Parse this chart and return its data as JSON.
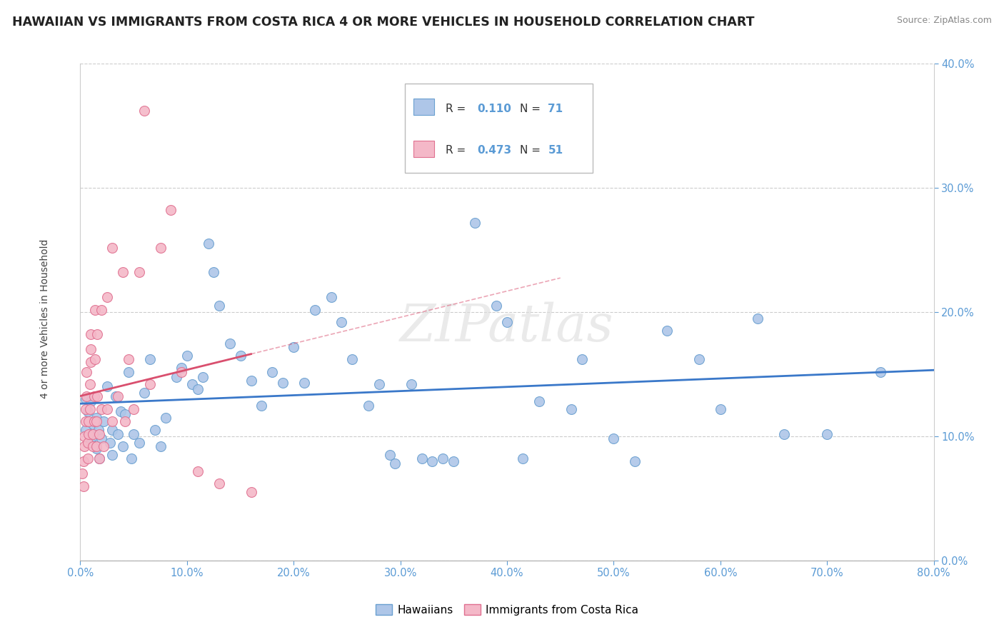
{
  "title": "HAWAIIAN VS IMMIGRANTS FROM COSTA RICA 4 OR MORE VEHICLES IN HOUSEHOLD CORRELATION CHART",
  "source_text": "Source: ZipAtlas.com",
  "ylabel": "4 or more Vehicles in Household",
  "watermark_text": "ZIPatlas",
  "hawaiian_color": "#aec6e8",
  "costarica_color": "#f4b8c8",
  "hawaiian_edge": "#6aa0d0",
  "costarica_edge": "#e07090",
  "hawaiian_trendline_color": "#3a78c9",
  "costarica_trendline_color": "#d94f6e",
  "tick_color": "#5b9bd5",
  "legend_r_color": "#5b9bd5",
  "legend_n_color": "#5b9bd5",
  "legend_text_color": "#333333",
  "xmin": 0.0,
  "xmax": 0.8,
  "ymin": 0.0,
  "ymax": 0.4,
  "hawaiian_scatter": [
    [
      0.005,
      0.13
    ],
    [
      0.005,
      0.105
    ],
    [
      0.007,
      0.12
    ],
    [
      0.01,
      0.128
    ],
    [
      0.01,
      0.095
    ],
    [
      0.012,
      0.11
    ],
    [
      0.012,
      0.1
    ],
    [
      0.015,
      0.09
    ],
    [
      0.015,
      0.115
    ],
    [
      0.017,
      0.105
    ],
    [
      0.018,
      0.082
    ],
    [
      0.02,
      0.098
    ],
    [
      0.022,
      0.112
    ],
    [
      0.025,
      0.14
    ],
    [
      0.028,
      0.095
    ],
    [
      0.03,
      0.105
    ],
    [
      0.03,
      0.085
    ],
    [
      0.033,
      0.132
    ],
    [
      0.035,
      0.102
    ],
    [
      0.038,
      0.12
    ],
    [
      0.04,
      0.092
    ],
    [
      0.042,
      0.118
    ],
    [
      0.045,
      0.152
    ],
    [
      0.048,
      0.082
    ],
    [
      0.05,
      0.102
    ],
    [
      0.055,
      0.095
    ],
    [
      0.06,
      0.135
    ],
    [
      0.065,
      0.162
    ],
    [
      0.07,
      0.105
    ],
    [
      0.075,
      0.092
    ],
    [
      0.08,
      0.115
    ],
    [
      0.09,
      0.148
    ],
    [
      0.095,
      0.155
    ],
    [
      0.1,
      0.165
    ],
    [
      0.105,
      0.142
    ],
    [
      0.11,
      0.138
    ],
    [
      0.115,
      0.148
    ],
    [
      0.12,
      0.255
    ],
    [
      0.125,
      0.232
    ],
    [
      0.13,
      0.205
    ],
    [
      0.14,
      0.175
    ],
    [
      0.15,
      0.165
    ],
    [
      0.16,
      0.145
    ],
    [
      0.17,
      0.125
    ],
    [
      0.18,
      0.152
    ],
    [
      0.19,
      0.143
    ],
    [
      0.2,
      0.172
    ],
    [
      0.21,
      0.143
    ],
    [
      0.22,
      0.202
    ],
    [
      0.235,
      0.212
    ],
    [
      0.245,
      0.192
    ],
    [
      0.255,
      0.162
    ],
    [
      0.27,
      0.125
    ],
    [
      0.28,
      0.142
    ],
    [
      0.29,
      0.085
    ],
    [
      0.295,
      0.078
    ],
    [
      0.31,
      0.142
    ],
    [
      0.32,
      0.082
    ],
    [
      0.33,
      0.08
    ],
    [
      0.34,
      0.082
    ],
    [
      0.35,
      0.08
    ],
    [
      0.37,
      0.272
    ],
    [
      0.39,
      0.205
    ],
    [
      0.4,
      0.192
    ],
    [
      0.415,
      0.082
    ],
    [
      0.43,
      0.128
    ],
    [
      0.46,
      0.122
    ],
    [
      0.47,
      0.162
    ],
    [
      0.5,
      0.098
    ],
    [
      0.52,
      0.08
    ],
    [
      0.55,
      0.185
    ],
    [
      0.58,
      0.162
    ],
    [
      0.6,
      0.122
    ],
    [
      0.635,
      0.195
    ],
    [
      0.66,
      0.102
    ],
    [
      0.7,
      0.102
    ],
    [
      0.75,
      0.152
    ]
  ],
  "costarica_scatter": [
    [
      0.002,
      0.07
    ],
    [
      0.003,
      0.08
    ],
    [
      0.003,
      0.06
    ],
    [
      0.004,
      0.092
    ],
    [
      0.004,
      0.1
    ],
    [
      0.005,
      0.112
    ],
    [
      0.005,
      0.122
    ],
    [
      0.006,
      0.132
    ],
    [
      0.006,
      0.152
    ],
    [
      0.007,
      0.082
    ],
    [
      0.007,
      0.095
    ],
    [
      0.008,
      0.102
    ],
    [
      0.008,
      0.112
    ],
    [
      0.009,
      0.122
    ],
    [
      0.009,
      0.142
    ],
    [
      0.01,
      0.16
    ],
    [
      0.01,
      0.17
    ],
    [
      0.01,
      0.182
    ],
    [
      0.012,
      0.092
    ],
    [
      0.012,
      0.102
    ],
    [
      0.013,
      0.112
    ],
    [
      0.013,
      0.132
    ],
    [
      0.014,
      0.162
    ],
    [
      0.014,
      0.202
    ],
    [
      0.015,
      0.092
    ],
    [
      0.015,
      0.112
    ],
    [
      0.016,
      0.132
    ],
    [
      0.016,
      0.182
    ],
    [
      0.018,
      0.082
    ],
    [
      0.018,
      0.102
    ],
    [
      0.02,
      0.122
    ],
    [
      0.02,
      0.202
    ],
    [
      0.022,
      0.092
    ],
    [
      0.025,
      0.122
    ],
    [
      0.025,
      0.212
    ],
    [
      0.03,
      0.112
    ],
    [
      0.03,
      0.252
    ],
    [
      0.035,
      0.132
    ],
    [
      0.04,
      0.232
    ],
    [
      0.042,
      0.112
    ],
    [
      0.045,
      0.162
    ],
    [
      0.05,
      0.122
    ],
    [
      0.055,
      0.232
    ],
    [
      0.06,
      0.362
    ],
    [
      0.065,
      0.142
    ],
    [
      0.075,
      0.252
    ],
    [
      0.085,
      0.282
    ],
    [
      0.095,
      0.152
    ],
    [
      0.11,
      0.072
    ],
    [
      0.13,
      0.062
    ],
    [
      0.16,
      0.055
    ]
  ]
}
